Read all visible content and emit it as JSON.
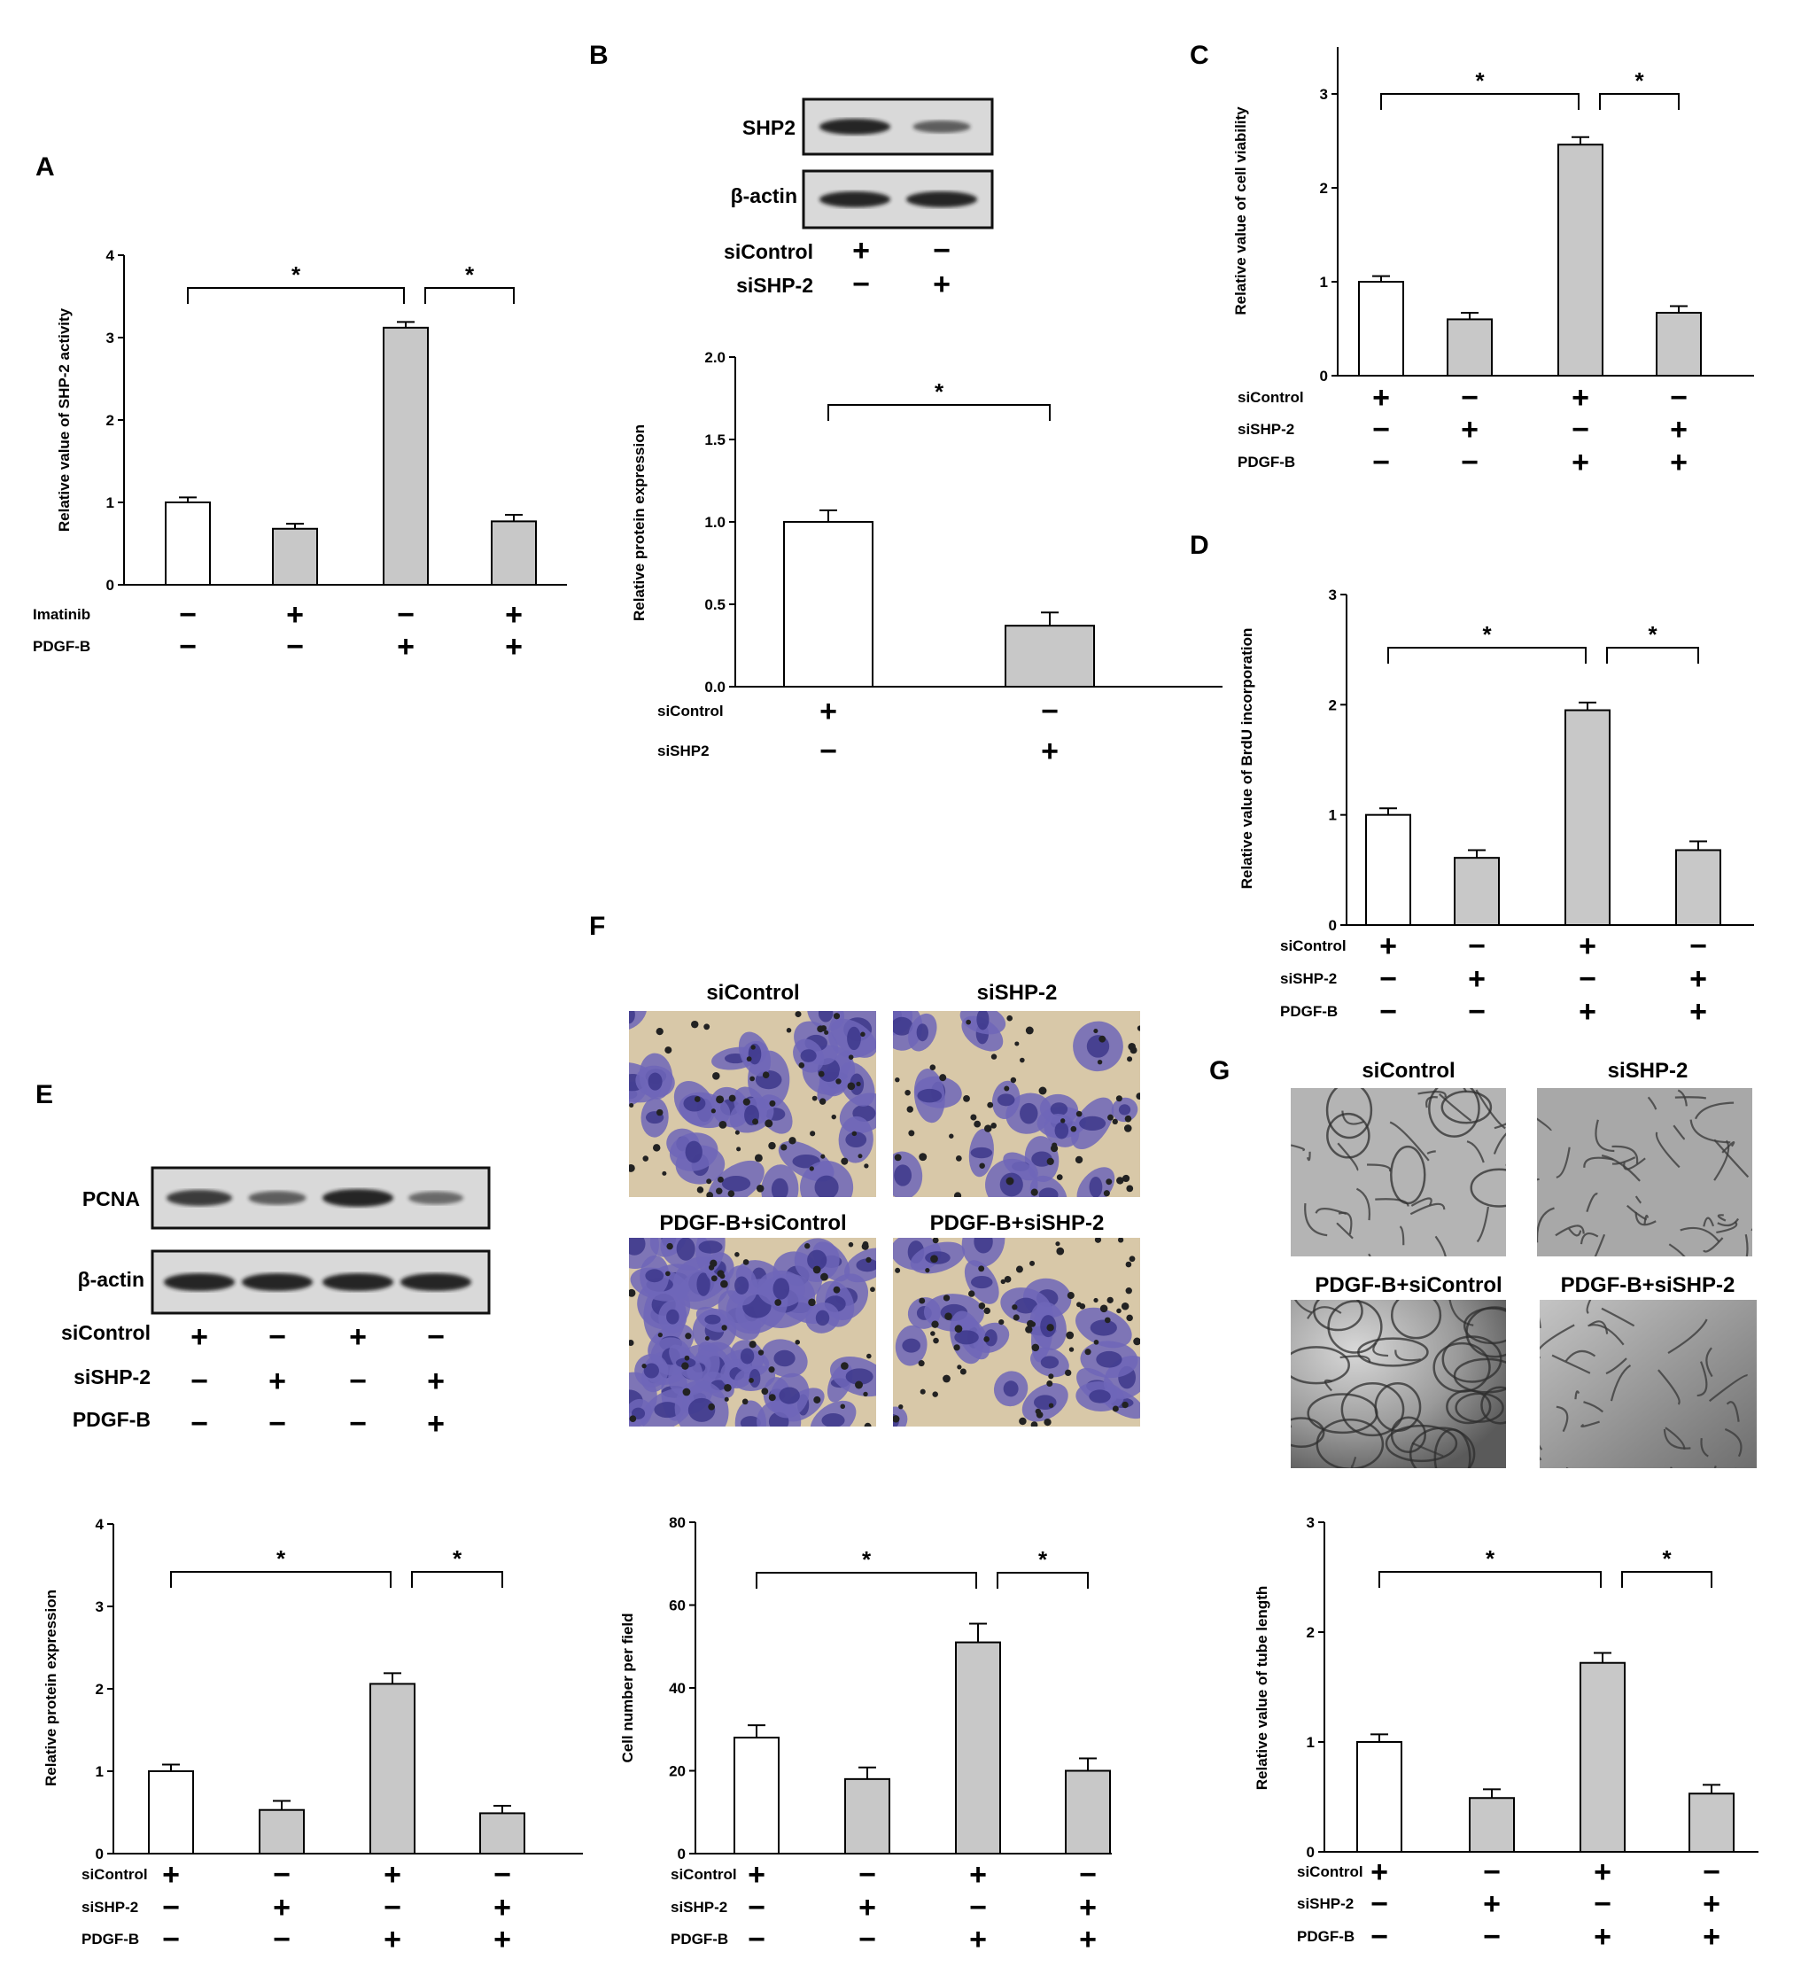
{
  "panels": {
    "A": "A",
    "B": "B",
    "C": "C",
    "D": "D",
    "E": "E",
    "F": "F",
    "G": "G"
  },
  "blot_B": {
    "bands": [
      "SHP2",
      "β-actin"
    ],
    "rows": [
      {
        "label": "siControl",
        "signs": [
          "+",
          "-"
        ]
      },
      {
        "label": "siSHP-2",
        "signs": [
          "-",
          "+"
        ]
      }
    ],
    "intensity": [
      [
        1.0,
        0.5
      ],
      [
        1.0,
        1.0
      ]
    ]
  },
  "blot_E": {
    "bands": [
      "PCNA",
      "β-actin"
    ],
    "rows": [
      {
        "label": "siControl",
        "signs": [
          "+",
          "-",
          "+",
          "-"
        ]
      },
      {
        "label": "siSHP-2",
        "signs": [
          "-",
          "+",
          "-",
          "+"
        ]
      },
      {
        "label": "PDGF-B",
        "signs": [
          "-",
          "-",
          "-",
          "+"
        ]
      }
    ],
    "intensity": [
      [
        0.8,
        0.5,
        1.0,
        0.4
      ],
      [
        1.0,
        1.0,
        1.0,
        1.0
      ]
    ]
  },
  "micrographs_F": {
    "labels": [
      "siControl",
      "siSHP-2",
      "PDGF-B+siControl",
      "PDGF-B+siSHP-2"
    ]
  },
  "micrographs_G": {
    "labels": [
      "siControl",
      "siSHP-2",
      "PDGF-B+siControl",
      "PDGF-B+siSHP-2"
    ]
  },
  "chart_data": [
    {
      "id": "A",
      "type": "bar",
      "ylabel": "Relative value of SHP-2 activity",
      "ylim": [
        0,
        4
      ],
      "yticks": [
        "0",
        "1",
        "2",
        "3",
        "4"
      ],
      "values": [
        1.0,
        0.68,
        3.12,
        0.77
      ],
      "errors": [
        0.06,
        0.06,
        0.07,
        0.08
      ],
      "fills": [
        "white",
        "gray",
        "gray",
        "gray"
      ],
      "rows": [
        {
          "label": "Imatinib",
          "signs": [
            "-",
            "+",
            "-",
            "+"
          ]
        },
        {
          "label": "PDGF-B",
          "signs": [
            "-",
            "-",
            "+",
            "+"
          ]
        }
      ],
      "brackets": [
        {
          "from": 0,
          "to": 2,
          "label": "*"
        },
        {
          "from": 2,
          "to": 3,
          "label": "*"
        }
      ]
    },
    {
      "id": "B",
      "type": "bar",
      "ylabel": "Relative protein expression",
      "ylim": [
        0,
        2.0
      ],
      "yticks": [
        "0.0",
        "0.5",
        "1.0",
        "1.5",
        "2.0"
      ],
      "values": [
        1.0,
        0.37
      ],
      "errors": [
        0.07,
        0.08
      ],
      "fills": [
        "white",
        "gray"
      ],
      "rows": [
        {
          "label": "siControl",
          "signs": [
            "+",
            "-"
          ]
        },
        {
          "label": "siSHP2",
          "signs": [
            "-",
            "+"
          ]
        }
      ],
      "brackets": [
        {
          "from": 0,
          "to": 1,
          "label": "*"
        }
      ]
    },
    {
      "id": "C",
      "type": "bar",
      "ylabel": "Relative value of cell viability",
      "ylim": [
        0,
        3.5
      ],
      "yticks": [
        "0",
        "1",
        "2",
        "3"
      ],
      "values": [
        1.0,
        0.6,
        2.46,
        0.67
      ],
      "errors": [
        0.06,
        0.07,
        0.08,
        0.07
      ],
      "fills": [
        "white",
        "gray",
        "gray",
        "gray"
      ],
      "rows": [
        {
          "label": "siControl",
          "signs": [
            "+",
            "-",
            "+",
            "-"
          ]
        },
        {
          "label": "siSHP-2",
          "signs": [
            "-",
            "+",
            "-",
            "+"
          ]
        },
        {
          "label": "PDGF-B",
          "signs": [
            "-",
            "-",
            "+",
            "+"
          ]
        }
      ],
      "brackets": [
        {
          "from": 0,
          "to": 2,
          "label": "*"
        },
        {
          "from": 2,
          "to": 3,
          "label": "*"
        }
      ]
    },
    {
      "id": "D",
      "type": "bar",
      "ylabel": "Relative value of BrdU incorporation",
      "ylim": [
        0,
        3
      ],
      "yticks": [
        "0",
        "1",
        "2",
        "3"
      ],
      "values": [
        1.0,
        0.61,
        1.95,
        0.68
      ],
      "errors": [
        0.06,
        0.07,
        0.07,
        0.08
      ],
      "fills": [
        "white",
        "gray",
        "gray",
        "gray"
      ],
      "rows": [
        {
          "label": "siControl",
          "signs": [
            "+",
            "-",
            "+",
            "-"
          ]
        },
        {
          "label": "siSHP-2",
          "signs": [
            "-",
            "+",
            "-",
            "+"
          ]
        },
        {
          "label": "PDGF-B",
          "signs": [
            "-",
            "-",
            "+",
            "+"
          ]
        }
      ],
      "brackets": [
        {
          "from": 0,
          "to": 2,
          "label": "*"
        },
        {
          "from": 2,
          "to": 3,
          "label": "*"
        }
      ]
    },
    {
      "id": "E",
      "type": "bar",
      "ylabel": "Relative protein expression",
      "ylim": [
        0,
        4
      ],
      "yticks": [
        "0",
        "1",
        "2",
        "3",
        "4"
      ],
      "values": [
        1.0,
        0.53,
        2.06,
        0.49
      ],
      "errors": [
        0.08,
        0.11,
        0.13,
        0.09
      ],
      "fills": [
        "white",
        "gray",
        "gray",
        "gray"
      ],
      "rows": [
        {
          "label": "siControl",
          "signs": [
            "+",
            "-",
            "+",
            "-"
          ]
        },
        {
          "label": "siSHP-2",
          "signs": [
            "-",
            "+",
            "-",
            "+"
          ]
        },
        {
          "label": "PDGF-B",
          "signs": [
            "-",
            "-",
            "+",
            "+"
          ]
        }
      ],
      "brackets": [
        {
          "from": 0,
          "to": 2,
          "label": "*"
        },
        {
          "from": 2,
          "to": 3,
          "label": "*"
        }
      ]
    },
    {
      "id": "F",
      "type": "bar",
      "ylabel": "Cell number per field",
      "ylim": [
        0,
        80
      ],
      "yticks": [
        "0",
        "20",
        "40",
        "60",
        "80"
      ],
      "values": [
        28,
        18,
        51,
        20
      ],
      "errors": [
        3,
        2.8,
        4.5,
        3
      ],
      "fills": [
        "white",
        "gray",
        "gray",
        "gray"
      ],
      "rows": [
        {
          "label": "siControl",
          "signs": [
            "+",
            "-",
            "+",
            "-"
          ]
        },
        {
          "label": "siSHP-2",
          "signs": [
            "-",
            "+",
            "-",
            "+"
          ]
        },
        {
          "label": "PDGF-B",
          "signs": [
            "-",
            "-",
            "+",
            "+"
          ]
        }
      ],
      "brackets": [
        {
          "from": 0,
          "to": 2,
          "label": "*"
        },
        {
          "from": 2,
          "to": 3,
          "label": "*"
        }
      ]
    },
    {
      "id": "G",
      "type": "bar",
      "ylabel": "Relative value of tube length",
      "ylim": [
        0,
        3
      ],
      "yticks": [
        "0",
        "1",
        "2",
        "3"
      ],
      "values": [
        1.0,
        0.49,
        1.72,
        0.53
      ],
      "errors": [
        0.07,
        0.08,
        0.09,
        0.08
      ],
      "fills": [
        "white",
        "gray",
        "gray",
        "gray"
      ],
      "rows": [
        {
          "label": "siControl",
          "signs": [
            "+",
            "-",
            "+",
            "-"
          ]
        },
        {
          "label": "siSHP-2",
          "signs": [
            "-",
            "+",
            "-",
            "+"
          ]
        },
        {
          "label": "PDGF-B",
          "signs": [
            "-",
            "-",
            "+",
            "+"
          ]
        }
      ],
      "brackets": [
        {
          "from": 0,
          "to": 2,
          "label": "*"
        },
        {
          "from": 2,
          "to": 3,
          "label": "*"
        }
      ]
    }
  ]
}
